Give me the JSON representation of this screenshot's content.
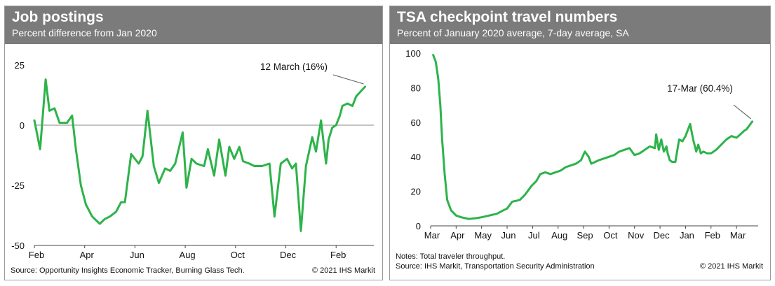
{
  "chart_data": [
    {
      "type": "line",
      "title": "Job postings",
      "subtitle": "Percent difference from Jan 2020",
      "xlabel": "",
      "ylabel": "",
      "x_ticks": [
        "Feb",
        "Apr",
        "Jun",
        "Aug",
        "Oct",
        "Dec",
        "Feb"
      ],
      "x_tick_positions": [
        0,
        2,
        4,
        6,
        8,
        10,
        12
      ],
      "xlim": [
        0,
        13.5
      ],
      "y_ticks": [
        "25",
        "0",
        "-25",
        "-50"
      ],
      "y_tick_values": [
        25,
        0,
        -25,
        -50
      ],
      "ylim": [
        -50,
        25
      ],
      "zero_line": true,
      "annotation": "12 March (16%)",
      "line_color": "#2db34a",
      "series": [
        {
          "name": "Job postings",
          "x": [
            0,
            0.23,
            0.45,
            0.6,
            0.8,
            1.0,
            1.3,
            1.5,
            1.65,
            1.85,
            2.05,
            2.3,
            2.6,
            2.8,
            3.0,
            3.25,
            3.45,
            3.6,
            3.85,
            4.15,
            4.3,
            4.5,
            4.75,
            4.95,
            5.2,
            5.4,
            5.6,
            5.9,
            6.05,
            6.25,
            6.45,
            6.75,
            6.9,
            7.15,
            7.35,
            7.6,
            7.75,
            7.95,
            8.15,
            8.3,
            8.55,
            8.75,
            9.05,
            9.35,
            9.55,
            9.8,
            10.05,
            10.25,
            10.4,
            10.6,
            10.8,
            11.05,
            11.2,
            11.4,
            11.6,
            11.7,
            11.85,
            12.0,
            12.15,
            12.25,
            12.45,
            12.65,
            12.8,
            13.15
          ],
          "values": [
            2,
            -10,
            19,
            6,
            7,
            1,
            1,
            4,
            -10,
            -25,
            -33,
            -38,
            -41,
            -39,
            -38,
            -36,
            -32,
            -32,
            -12,
            -16,
            -13,
            6,
            -17,
            -24,
            -18,
            -19,
            -16,
            -3,
            -26,
            -14,
            -16,
            -17,
            -10,
            -21,
            -6,
            -21,
            -9,
            -14,
            -9,
            -15,
            -16,
            -17,
            -17,
            -16,
            -38,
            -16,
            -14,
            -18,
            -16,
            -44,
            -17,
            -5,
            -11,
            2,
            -16,
            -6,
            -1,
            0,
            4,
            8,
            9,
            8,
            12,
            16
          ]
        }
      ]
    },
    {
      "type": "line",
      "title": "TSA checkpoint travel numbers",
      "subtitle": "Percent of January 2020 average, 7-day average, SA",
      "xlabel": "",
      "ylabel": "",
      "x_ticks": [
        "Mar",
        "Apr",
        "May",
        "Jun",
        "Jul",
        "Aug",
        "Sep",
        "Oct",
        "Nov",
        "Dec",
        "Jan",
        "Feb",
        "Mar"
      ],
      "x_tick_positions": [
        0,
        1,
        2,
        3,
        4,
        5,
        6,
        7,
        8,
        9,
        10,
        11,
        12
      ],
      "xlim": [
        0,
        12.85
      ],
      "y_ticks": [
        "100",
        "80",
        "60",
        "40",
        "20",
        "0"
      ],
      "y_tick_values": [
        100,
        80,
        60,
        40,
        20,
        0
      ],
      "ylim": [
        0,
        100
      ],
      "zero_line": false,
      "annotation": "17-Mar (60.4%)",
      "line_color": "#2db34a",
      "series": [
        {
          "name": "TSA checkpoint travel numbers",
          "x": [
            0.1,
            0.2,
            0.3,
            0.38,
            0.45,
            0.55,
            0.65,
            0.8,
            1.0,
            1.2,
            1.5,
            1.8,
            2.0,
            2.3,
            2.6,
            2.85,
            3.0,
            3.2,
            3.5,
            3.7,
            3.95,
            4.15,
            4.3,
            4.5,
            4.7,
            4.9,
            5.1,
            5.3,
            5.5,
            5.7,
            5.9,
            6.05,
            6.2,
            6.3,
            6.45,
            6.6,
            6.8,
            7.0,
            7.2,
            7.4,
            7.6,
            7.8,
            8.0,
            8.2,
            8.4,
            8.6,
            8.8,
            8.85,
            8.95,
            9.05,
            9.15,
            9.25,
            9.3,
            9.38,
            9.48,
            9.6,
            9.75,
            9.88,
            10.0,
            10.08,
            10.18,
            10.3,
            10.42,
            10.5,
            10.6,
            10.7,
            10.85,
            11.0,
            11.2,
            11.4,
            11.6,
            11.8,
            12.0,
            12.15,
            12.3,
            12.4,
            12.5,
            12.62
          ],
          "values": [
            99,
            95,
            85,
            70,
            50,
            30,
            15,
            9,
            6,
            5,
            4,
            4.5,
            5,
            6,
            7,
            9,
            10,
            14,
            15,
            18,
            23,
            26,
            30,
            31,
            30,
            31,
            32,
            34,
            35,
            36,
            38,
            43,
            40,
            36,
            37,
            38,
            39,
            40,
            41,
            43,
            44,
            45,
            41,
            42,
            44,
            46,
            45,
            53,
            44,
            50,
            43,
            46,
            42,
            38,
            37,
            37,
            50,
            49,
            52,
            55,
            59,
            50,
            43,
            47,
            42,
            43,
            42,
            42,
            44,
            47,
            50,
            52,
            51,
            53,
            55,
            56,
            58,
            60.4
          ]
        }
      ]
    }
  ],
  "footers": {
    "left_source": "Source: Opportunity Insights Economic Tracker, Burning Glass Tech.",
    "left_copyright": "© 2021 IHS Markit",
    "right_notes": "Notes: Total traveler throughput.",
    "right_source": "Source: IHS Markit, Transportation Security Administration",
    "right_copyright": "© 2021 IHS Markit"
  }
}
